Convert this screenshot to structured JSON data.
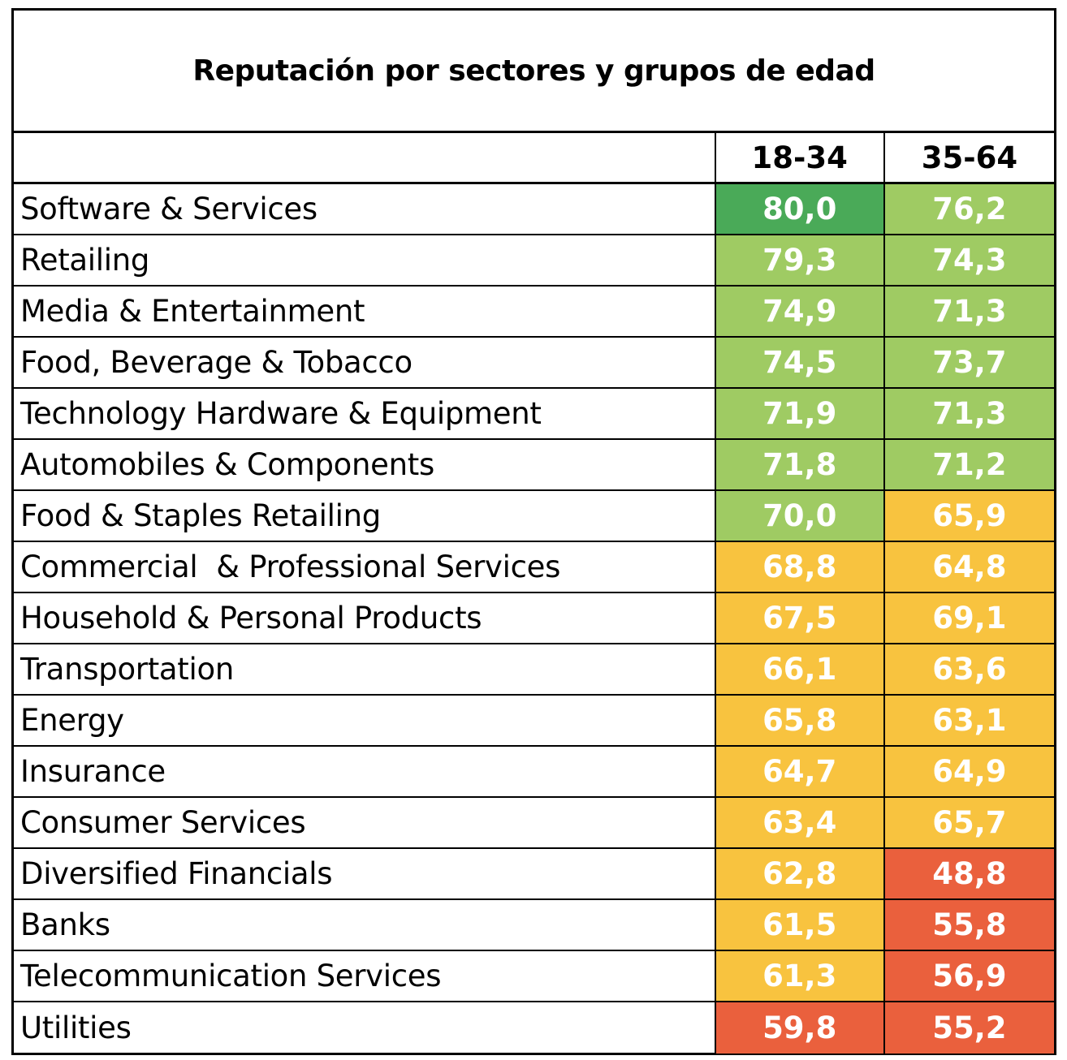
{
  "chart_data": {
    "type": "table",
    "title": "Reputación por sectores y grupos de edad",
    "columns": [
      "18-34",
      "35-64"
    ],
    "colors": {
      "dark_green": "#4aaa58",
      "green": "#9fcb63",
      "yellow": "#f8c33f",
      "red": "#ea603d"
    },
    "rows": [
      {
        "sector": "Software & Services",
        "values": [
          "80,0",
          "76,2"
        ],
        "colors": [
          "#4aaa58",
          "#9fcb63"
        ]
      },
      {
        "sector": "Retailing",
        "values": [
          "79,3",
          "74,3"
        ],
        "colors": [
          "#9fcb63",
          "#9fcb63"
        ]
      },
      {
        "sector": "Media & Entertainment",
        "values": [
          "74,9",
          "71,3"
        ],
        "colors": [
          "#9fcb63",
          "#9fcb63"
        ]
      },
      {
        "sector": "Food, Beverage & Tobacco",
        "values": [
          "74,5",
          "73,7"
        ],
        "colors": [
          "#9fcb63",
          "#9fcb63"
        ]
      },
      {
        "sector": "Technology Hardware & Equipment",
        "values": [
          "71,9",
          "71,3"
        ],
        "colors": [
          "#9fcb63",
          "#9fcb63"
        ]
      },
      {
        "sector": "Automobiles & Components",
        "values": [
          "71,8",
          "71,2"
        ],
        "colors": [
          "#9fcb63",
          "#9fcb63"
        ]
      },
      {
        "sector": "Food & Staples Retailing",
        "values": [
          "70,0",
          "65,9"
        ],
        "colors": [
          "#9fcb63",
          "#f8c33f"
        ]
      },
      {
        "sector": "Commercial  & Professional Services",
        "values": [
          "68,8",
          "64,8"
        ],
        "colors": [
          "#f8c33f",
          "#f8c33f"
        ]
      },
      {
        "sector": "Household & Personal Products",
        "values": [
          "67,5",
          "69,1"
        ],
        "colors": [
          "#f8c33f",
          "#f8c33f"
        ]
      },
      {
        "sector": "Transportation",
        "values": [
          "66,1",
          "63,6"
        ],
        "colors": [
          "#f8c33f",
          "#f8c33f"
        ]
      },
      {
        "sector": "Energy",
        "values": [
          "65,8",
          "63,1"
        ],
        "colors": [
          "#f8c33f",
          "#f8c33f"
        ]
      },
      {
        "sector": "Insurance",
        "values": [
          "64,7",
          "64,9"
        ],
        "colors": [
          "#f8c33f",
          "#f8c33f"
        ]
      },
      {
        "sector": "Consumer Services",
        "values": [
          "63,4",
          "65,7"
        ],
        "colors": [
          "#f8c33f",
          "#f8c33f"
        ]
      },
      {
        "sector": "Diversified Financials",
        "values": [
          "62,8",
          "48,8"
        ],
        "colors": [
          "#f8c33f",
          "#ea603d"
        ]
      },
      {
        "sector": "Banks",
        "values": [
          "61,5",
          "55,8"
        ],
        "colors": [
          "#f8c33f",
          "#ea603d"
        ]
      },
      {
        "sector": "Telecommunication Services",
        "values": [
          "61,3",
          "56,9"
        ],
        "colors": [
          "#f8c33f",
          "#ea603d"
        ]
      },
      {
        "sector": "Utilities",
        "values": [
          "59,8",
          "55,2"
        ],
        "colors": [
          "#ea603d",
          "#ea603d"
        ]
      }
    ]
  }
}
